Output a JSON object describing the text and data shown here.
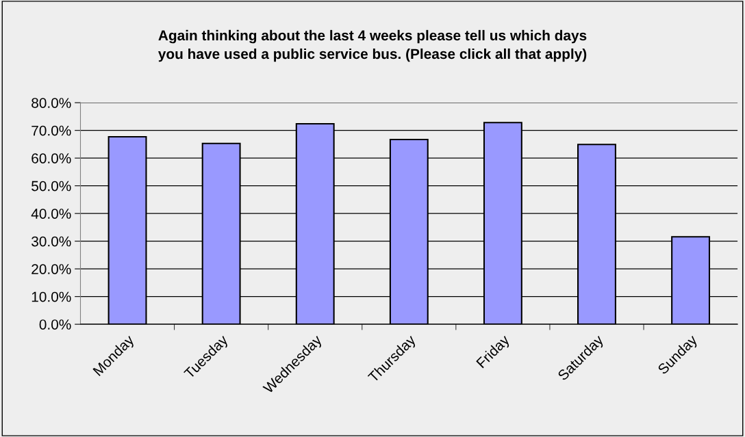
{
  "chart_data": {
    "type": "bar",
    "title": "Again thinking about the last 4 weeks please tell us which days\nyou have used a public service bus. (Please click all that apply)",
    "categories": [
      "Monday",
      "Tuesday",
      "Wednesday",
      "Thursday",
      "Friday",
      "Saturday",
      "Sunday"
    ],
    "values": [
      67.7,
      65.3,
      72.4,
      66.7,
      72.8,
      64.9,
      31.6
    ],
    "color": "#9999ff",
    "ylim": [
      0,
      80
    ],
    "yticks": [
      {
        "value": 0,
        "label": "0.0%"
      },
      {
        "value": 10,
        "label": "10.0%"
      },
      {
        "value": 20,
        "label": "20.0%"
      },
      {
        "value": 30,
        "label": "30.0%"
      },
      {
        "value": 40,
        "label": "40.0%"
      },
      {
        "value": 50,
        "label": "50.0%"
      },
      {
        "value": 60,
        "label": "60.0%"
      },
      {
        "value": 70,
        "label": "70.0%"
      },
      {
        "value": 80,
        "label": "80.0%"
      }
    ],
    "grid": "y"
  }
}
